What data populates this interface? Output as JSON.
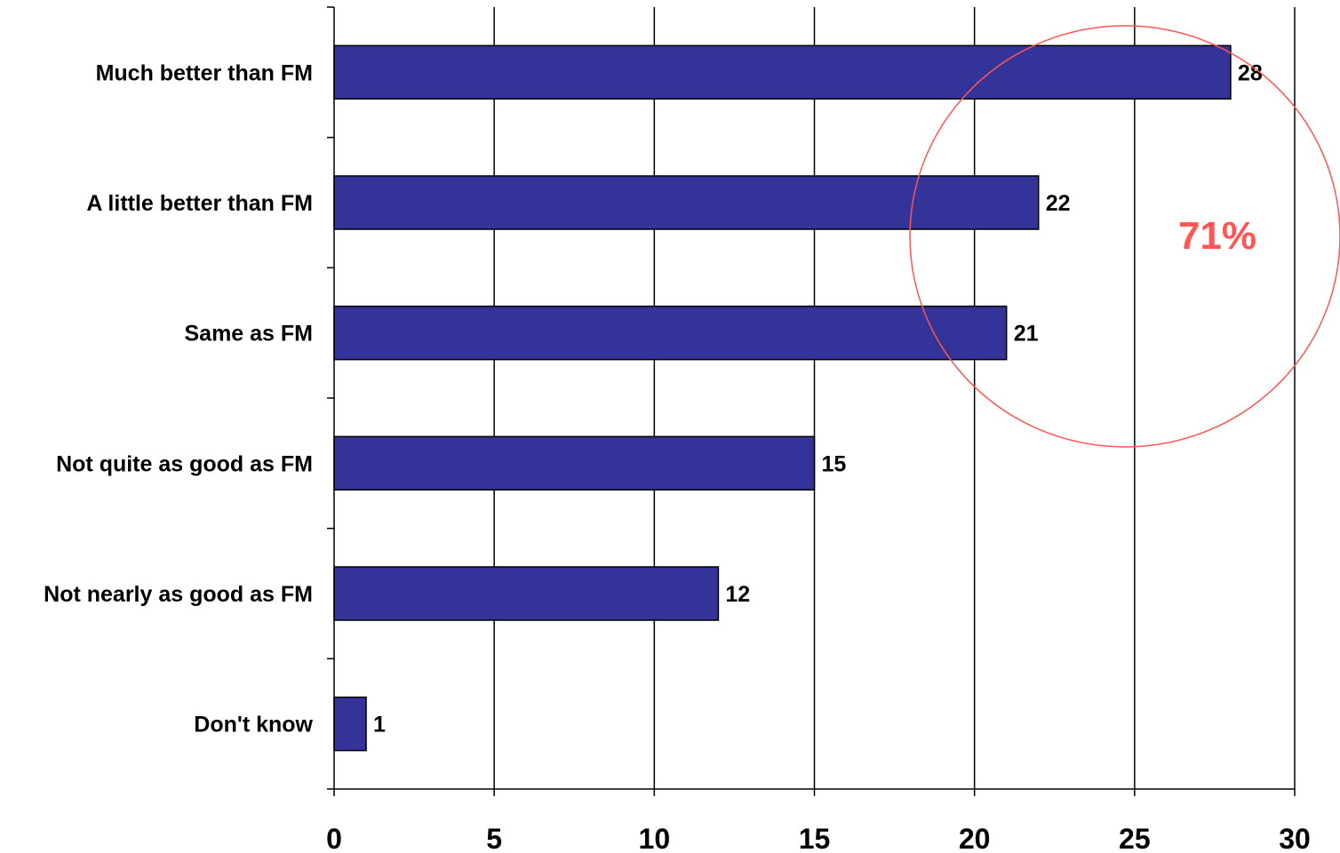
{
  "chart_data": {
    "type": "bar",
    "orientation": "horizontal",
    "categories": [
      "Much better than FM",
      "A little better than FM",
      "Same as FM",
      "Not quite as good as FM",
      "Not nearly as good as FM",
      "Don't know"
    ],
    "values": [
      28,
      22,
      21,
      15,
      12,
      1
    ],
    "data_labels": [
      "28",
      "22",
      "21",
      "15",
      "12",
      "1"
    ],
    "xlim": [
      0,
      30
    ],
    "x_ticks": [
      0,
      5,
      10,
      15,
      20,
      25,
      30
    ],
    "x_tick_labels": [
      "0",
      "5",
      "10",
      "15",
      "20",
      "25",
      "30"
    ],
    "grid": "vertical",
    "legend": "none",
    "bar_color": "#333399",
    "annotation": {
      "text": "71%",
      "shape": "circle",
      "color": "#ff5555",
      "encloses": [
        "Much better than FM",
        "A little better than FM",
        "Same as FM"
      ]
    }
  }
}
